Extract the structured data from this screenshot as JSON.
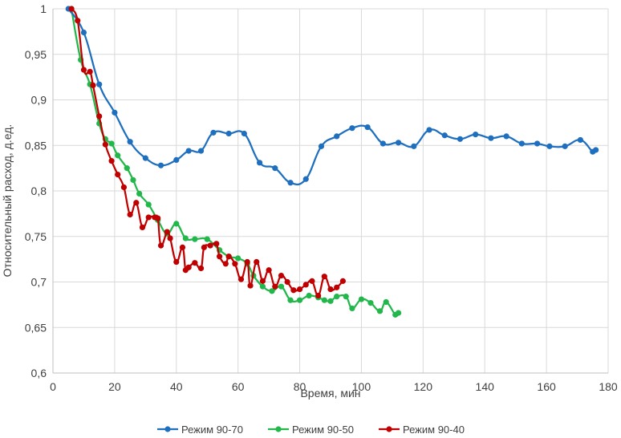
{
  "chart_data": {
    "type": "line",
    "title": "",
    "xlabel": "Время, мин",
    "ylabel": "Относительный расход, д.ед.",
    "xlim": [
      0,
      180
    ],
    "ylim": [
      0.6,
      1
    ],
    "grid": true,
    "legend_position": "bottom",
    "x_ticks": [
      0,
      20,
      40,
      60,
      80,
      100,
      120,
      140,
      160,
      180
    ],
    "y_ticks": [
      0.6,
      0.65,
      0.7,
      0.75,
      0.8,
      0.85,
      0.9,
      0.95,
      1
    ],
    "x_tick_labels": [
      "0",
      "20",
      "40",
      "60",
      "80",
      "100",
      "120",
      "140",
      "160",
      "180"
    ],
    "y_tick_labels": [
      "0,6",
      "0,65",
      "0,7",
      "0,75",
      "0,8",
      "0,85",
      "0,9",
      "0,95",
      "1"
    ],
    "series": [
      {
        "name": "Режим 90-70",
        "color": "#1f6fbf",
        "points": [
          [
            5,
            1.0
          ],
          [
            10,
            0.974
          ],
          [
            15,
            0.917
          ],
          [
            20,
            0.886
          ],
          [
            25,
            0.854
          ],
          [
            30,
            0.836
          ],
          [
            35,
            0.828
          ],
          [
            40,
            0.834
          ],
          [
            44,
            0.844
          ],
          [
            48,
            0.844
          ],
          [
            52,
            0.864
          ],
          [
            57,
            0.863
          ],
          [
            62,
            0.863
          ],
          [
            67,
            0.831
          ],
          [
            72,
            0.825
          ],
          [
            77,
            0.809
          ],
          [
            82,
            0.813
          ],
          [
            87,
            0.849
          ],
          [
            92,
            0.86
          ],
          [
            97,
            0.869
          ],
          [
            102,
            0.87
          ],
          [
            107,
            0.852
          ],
          [
            112,
            0.853
          ],
          [
            117,
            0.849
          ],
          [
            122,
            0.867
          ],
          [
            127,
            0.861
          ],
          [
            132,
            0.857
          ],
          [
            137,
            0.862
          ],
          [
            142,
            0.858
          ],
          [
            147,
            0.86
          ],
          [
            152,
            0.852
          ],
          [
            157,
            0.852
          ],
          [
            161,
            0.849
          ],
          [
            166,
            0.849
          ],
          [
            171,
            0.856
          ],
          [
            175,
            0.843
          ],
          [
            176,
            0.845
          ]
        ]
      },
      {
        "name": "Режим 90-50",
        "color": "#22b74a",
        "points": [
          [
            6,
            1.0
          ],
          [
            9,
            0.944
          ],
          [
            12,
            0.917
          ],
          [
            15,
            0.874
          ],
          [
            17,
            0.857
          ],
          [
            19,
            0.852
          ],
          [
            21,
            0.839
          ],
          [
            24,
            0.825
          ],
          [
            26,
            0.812
          ],
          [
            28,
            0.797
          ],
          [
            31,
            0.785
          ],
          [
            34,
            0.768
          ],
          [
            37,
            0.753
          ],
          [
            40,
            0.764
          ],
          [
            43,
            0.748
          ],
          [
            46,
            0.747
          ],
          [
            50,
            0.747
          ],
          [
            54,
            0.735
          ],
          [
            57,
            0.728
          ],
          [
            60,
            0.726
          ],
          [
            63,
            0.72
          ],
          [
            65,
            0.707
          ],
          [
            68,
            0.695
          ],
          [
            71,
            0.69
          ],
          [
            74,
            0.695
          ],
          [
            77,
            0.68
          ],
          [
            80,
            0.68
          ],
          [
            83,
            0.685
          ],
          [
            86,
            0.683
          ],
          [
            88,
            0.68
          ],
          [
            90,
            0.679
          ],
          [
            92,
            0.684
          ],
          [
            95,
            0.684
          ],
          [
            97,
            0.671
          ],
          [
            100,
            0.681
          ],
          [
            103,
            0.677
          ],
          [
            106,
            0.668
          ],
          [
            108,
            0.678
          ],
          [
            111,
            0.664
          ],
          [
            112,
            0.666
          ]
        ]
      },
      {
        "name": "Режим 90-40",
        "color": "#c00000",
        "points": [
          [
            6,
            1.0
          ],
          [
            8,
            0.987
          ],
          [
            10,
            0.933
          ],
          [
            12,
            0.931
          ],
          [
            13,
            0.916
          ],
          [
            15,
            0.882
          ],
          [
            17,
            0.851
          ],
          [
            19,
            0.833
          ],
          [
            21,
            0.818
          ],
          [
            23,
            0.804
          ],
          [
            25,
            0.774
          ],
          [
            27,
            0.787
          ],
          [
            29,
            0.76
          ],
          [
            31,
            0.771
          ],
          [
            33,
            0.771
          ],
          [
            34,
            0.77
          ],
          [
            35,
            0.74
          ],
          [
            37,
            0.755
          ],
          [
            38,
            0.748
          ],
          [
            40,
            0.722
          ],
          [
            42,
            0.738
          ],
          [
            43,
            0.713
          ],
          [
            44,
            0.716
          ],
          [
            46,
            0.721
          ],
          [
            48,
            0.715
          ],
          [
            49,
            0.738
          ],
          [
            51,
            0.74
          ],
          [
            53,
            0.742
          ],
          [
            54,
            0.728
          ],
          [
            56,
            0.72
          ],
          [
            57,
            0.728
          ],
          [
            59,
            0.72
          ],
          [
            61,
            0.703
          ],
          [
            63,
            0.722
          ],
          [
            64,
            0.696
          ],
          [
            66,
            0.722
          ],
          [
            68,
            0.701
          ],
          [
            70,
            0.713
          ],
          [
            72,
            0.695
          ],
          [
            74,
            0.707
          ],
          [
            76,
            0.7
          ],
          [
            78,
            0.691
          ],
          [
            80,
            0.692
          ],
          [
            82,
            0.697
          ],
          [
            84,
            0.701
          ],
          [
            86,
            0.685
          ],
          [
            88,
            0.706
          ],
          [
            90,
            0.692
          ],
          [
            92,
            0.694
          ],
          [
            94,
            0.701
          ]
        ]
      }
    ]
  }
}
